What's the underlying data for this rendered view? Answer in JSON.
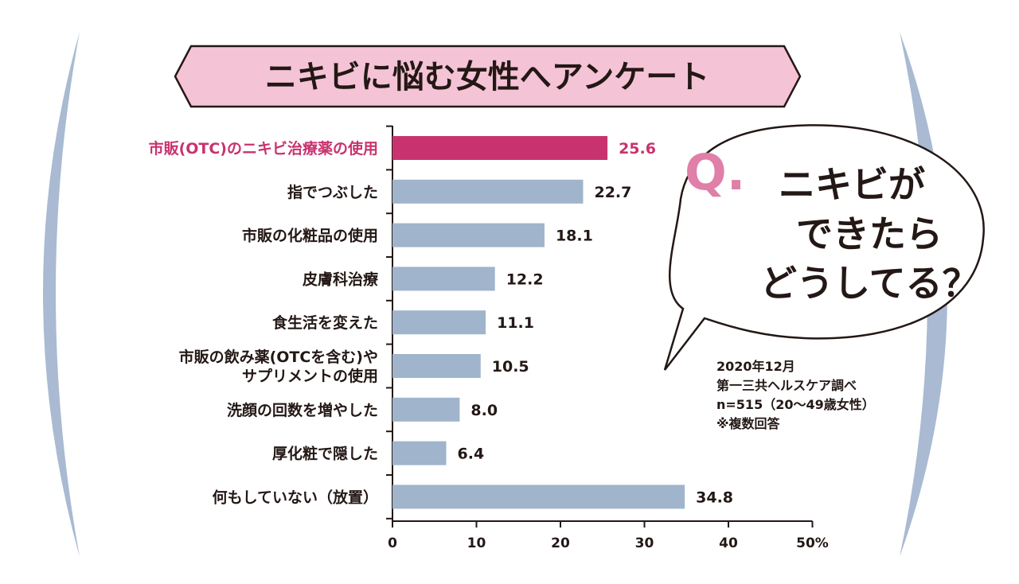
{
  "title": "ニキビに悩む女性へアンケート",
  "question": {
    "mark": "Q.",
    "lines": [
      "ニキビが",
      "できたら",
      "どうしてる？"
    ]
  },
  "source_note": [
    "2020年12月",
    "第一三共ヘルスケア調べ",
    "n=515（20〜49歳女性）",
    "※複数回答"
  ],
  "colors": {
    "highlight": "#c8336f",
    "bar": "#a0b4cc",
    "title_bg": "#f5c3d6",
    "text": "#231815",
    "parenthesis": "#a9bad2"
  },
  "chart_data": {
    "type": "bar",
    "orientation": "horizontal",
    "categories": [
      [
        "市販(OTC)のニキビ治療薬の使用"
      ],
      [
        "指でつぶした"
      ],
      [
        "市販の化粧品の使用"
      ],
      [
        "皮膚科治療"
      ],
      [
        "食生活を変えた"
      ],
      [
        "市販の飲み薬(OTCを含む)や",
        "サプリメントの使用"
      ],
      [
        "洗顔の回数を増やした"
      ],
      [
        "厚化粧で隠した"
      ],
      [
        "何もしていない（放置）"
      ]
    ],
    "values": [
      25.6,
      22.7,
      18.1,
      12.2,
      11.1,
      10.5,
      8.0,
      6.4,
      34.8
    ],
    "value_labels": [
      "25.6",
      "22.7",
      "18.1",
      "12.2",
      "11.1",
      "10.5",
      "8.0",
      "6.4",
      "34.8"
    ],
    "highlight_index": 0,
    "xlim": [
      0,
      50
    ],
    "xticks": [
      "0",
      "10",
      "20",
      "30",
      "40",
      "50%"
    ]
  }
}
